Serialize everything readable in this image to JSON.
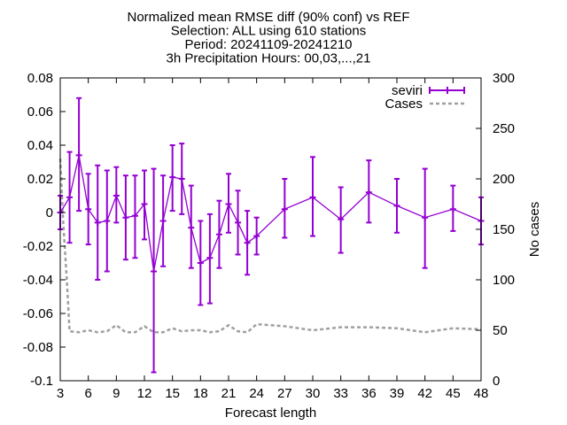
{
  "chart_data": {
    "type": "line",
    "title_lines": [
      "Normalized mean RMSE diff (90% conf) vs REF",
      "Selection: ALL using   610 stations",
      "Period: 20241109-20241210",
      "3h Precipitation   Hours: 00,03,...,21"
    ],
    "xlabel": "Forecast length",
    "ylabel": "",
    "y2label": "No cases",
    "xlim": [
      3,
      48
    ],
    "ylim": [
      -0.1,
      0.08
    ],
    "y2lim": [
      0,
      300
    ],
    "xticks": [
      3,
      6,
      9,
      12,
      15,
      18,
      21,
      24,
      27,
      30,
      33,
      36,
      39,
      42,
      45,
      48
    ],
    "yticks": [
      -0.1,
      -0.08,
      -0.06,
      -0.04,
      -0.02,
      0,
      0.02,
      0.04,
      0.06,
      0.08
    ],
    "ytick_labels": [
      "-0.1",
      "-0.08",
      "-0.06",
      "-0.04",
      "-0.02",
      "0",
      "0.02",
      "0.04",
      "0.06",
      "0.08"
    ],
    "y2ticks": [
      0,
      50,
      100,
      150,
      200,
      250,
      300
    ],
    "y2tick_labels": [
      "0",
      "50",
      "100",
      "150",
      "200",
      "250",
      "300"
    ],
    "grid": false,
    "legend_position": "top-right",
    "series": [
      {
        "name": "seviri",
        "axis": "y1",
        "color": "#9400d3",
        "style": "line-errorbars",
        "x": [
          3,
          4,
          5,
          6,
          7,
          8,
          9,
          10,
          11,
          12,
          13,
          14,
          15,
          16,
          17,
          18,
          19,
          20,
          21,
          22,
          23,
          24,
          27,
          30,
          33,
          36,
          39,
          42,
          45,
          48
        ],
        "y": [
          0.0,
          0.009,
          0.034,
          0.002,
          -0.006,
          -0.005,
          0.01,
          -0.003,
          -0.002,
          0.005,
          -0.035,
          -0.005,
          0.021,
          0.02,
          -0.009,
          -0.03,
          -0.027,
          -0.013,
          0.005,
          -0.006,
          -0.018,
          -0.014,
          0.002,
          0.009,
          -0.004,
          0.012,
          0.004,
          -0.003,
          0.002,
          -0.005
        ],
        "low": [
          -0.01,
          -0.018,
          0.001,
          -0.019,
          -0.04,
          -0.035,
          -0.006,
          -0.028,
          -0.027,
          -0.016,
          -0.095,
          -0.032,
          0.001,
          -0.001,
          -0.033,
          -0.055,
          -0.054,
          -0.033,
          -0.012,
          -0.025,
          -0.037,
          -0.025,
          -0.015,
          -0.014,
          -0.024,
          -0.006,
          -0.012,
          -0.033,
          -0.011,
          -0.019
        ],
        "high": [
          0.01,
          0.036,
          0.068,
          0.023,
          0.028,
          0.025,
          0.027,
          0.022,
          0.022,
          0.025,
          0.026,
          0.022,
          0.04,
          0.041,
          0.016,
          -0.005,
          -0.001,
          0.007,
          0.023,
          0.013,
          0.001,
          -0.003,
          0.02,
          0.033,
          0.015,
          0.031,
          0.02,
          0.026,
          0.016,
          0.009
        ]
      },
      {
        "name": "Cases",
        "axis": "y2",
        "color": "#a0a0a0",
        "style": "dashed",
        "x": [
          3,
          3.3,
          3.7,
          4,
          5,
          6,
          7,
          8,
          9,
          10,
          11,
          12,
          13,
          14,
          15,
          16,
          17,
          18,
          19,
          20,
          21,
          22,
          23,
          24,
          27,
          30,
          33,
          36,
          39,
          42,
          45,
          48
        ],
        "y": [
          220,
          160,
          100,
          49,
          48,
          50,
          48,
          49,
          55,
          48,
          48,
          54,
          48,
          48,
          52,
          49,
          50,
          50,
          48,
          49,
          55,
          49,
          48,
          56,
          54,
          50,
          53,
          53,
          52,
          48,
          52,
          51
        ]
      }
    ]
  }
}
